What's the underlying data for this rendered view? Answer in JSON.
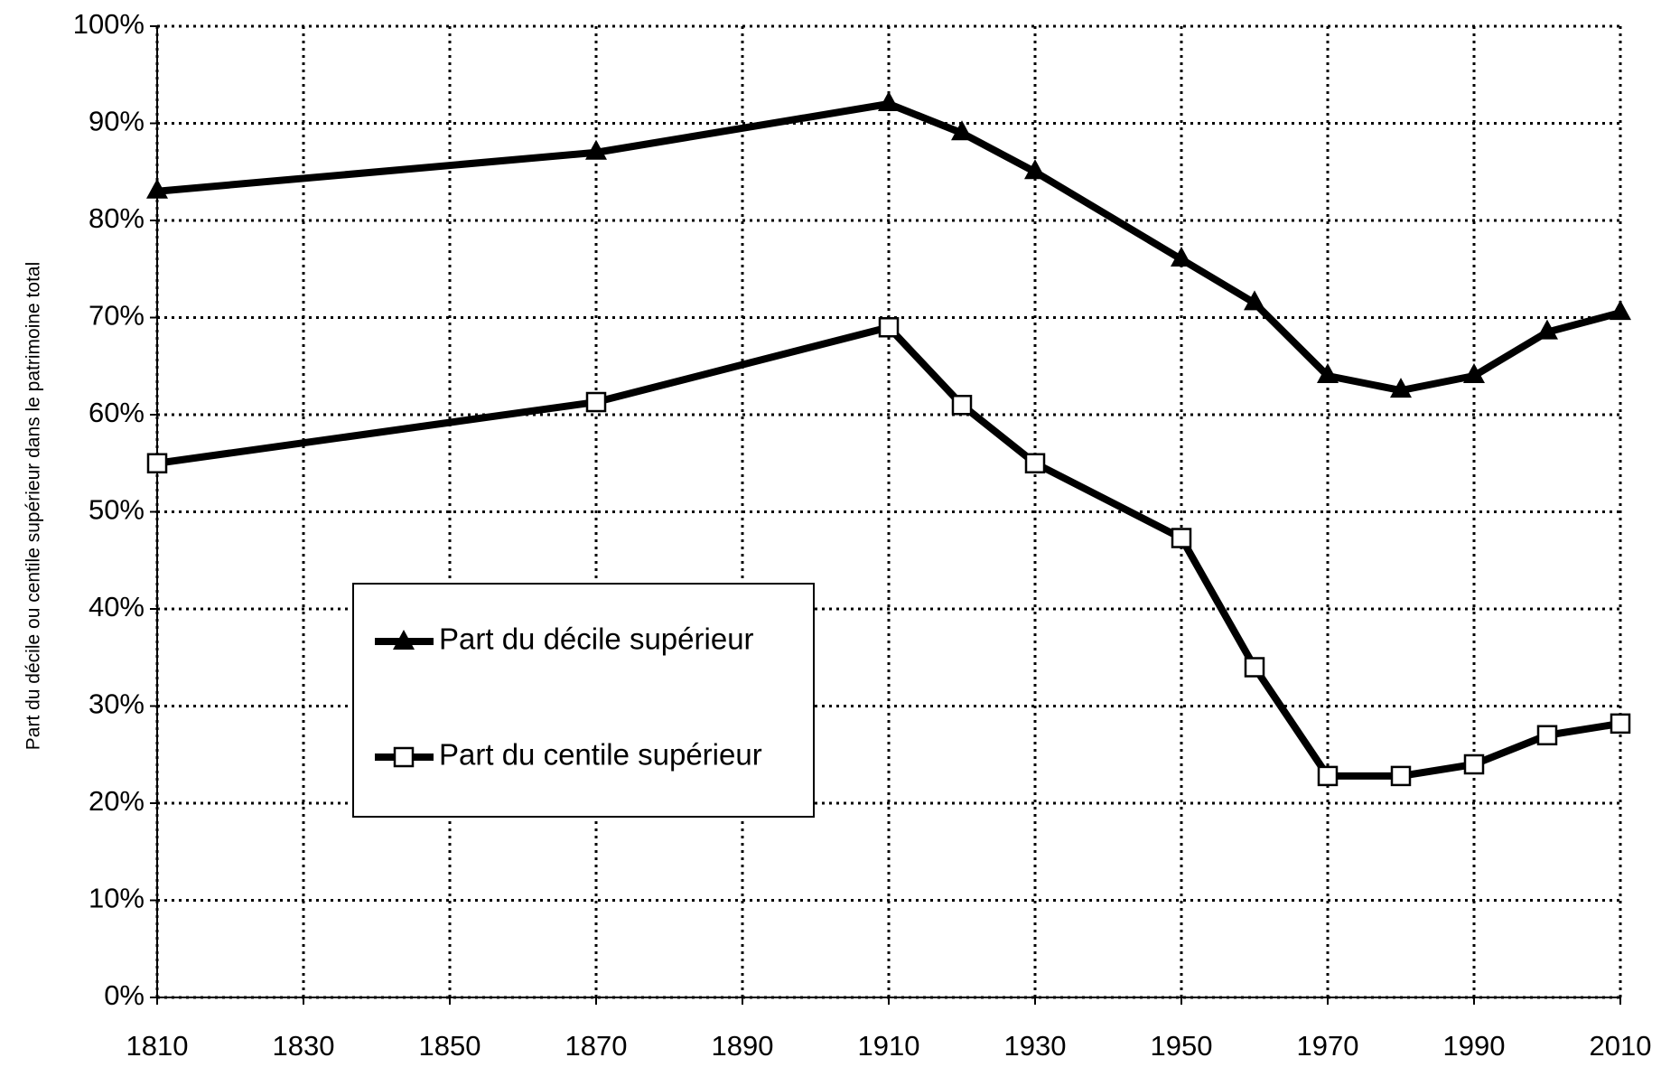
{
  "chart_data": {
    "type": "line",
    "y_label": "Part du décile ou centile supérieur dans le patrimoine total",
    "x": [
      1810,
      1870,
      1910,
      1920,
      1930,
      1950,
      1960,
      1970,
      1980,
      1990,
      2000,
      2010
    ],
    "series": [
      {
        "name": "Part du décile supérieur",
        "color": "#000000",
        "marker": "triangle",
        "values": [
          83,
          87,
          92,
          89,
          85,
          76,
          71.5,
          64,
          62.5,
          64,
          68.5,
          70.5
        ]
      },
      {
        "name": "Part du centile supérieur",
        "color": "#000000",
        "marker": "open-square",
        "values": [
          55,
          61.3,
          69,
          61,
          55,
          47.3,
          34,
          22.8,
          22.8,
          24,
          27,
          28.2
        ]
      }
    ],
    "xlim": [
      1810,
      2010
    ],
    "xticks": [
      1810,
      1830,
      1850,
      1870,
      1890,
      1910,
      1930,
      1950,
      1970,
      1990,
      2010
    ],
    "ylim": [
      0,
      100
    ],
    "yticks": [
      {
        "value": 0,
        "label": "0%"
      },
      {
        "value": 10,
        "label": "10%"
      },
      {
        "value": 20,
        "label": "20%"
      },
      {
        "value": 30,
        "label": "30%"
      },
      {
        "value": 40,
        "label": "40%"
      },
      {
        "value": 50,
        "label": "50%"
      },
      {
        "value": 60,
        "label": "60%"
      },
      {
        "value": 70,
        "label": "70%"
      },
      {
        "value": 80,
        "label": "80%"
      },
      {
        "value": 90,
        "label": "90%"
      },
      {
        "value": 100,
        "label": "100%"
      }
    ],
    "grid": true
  }
}
